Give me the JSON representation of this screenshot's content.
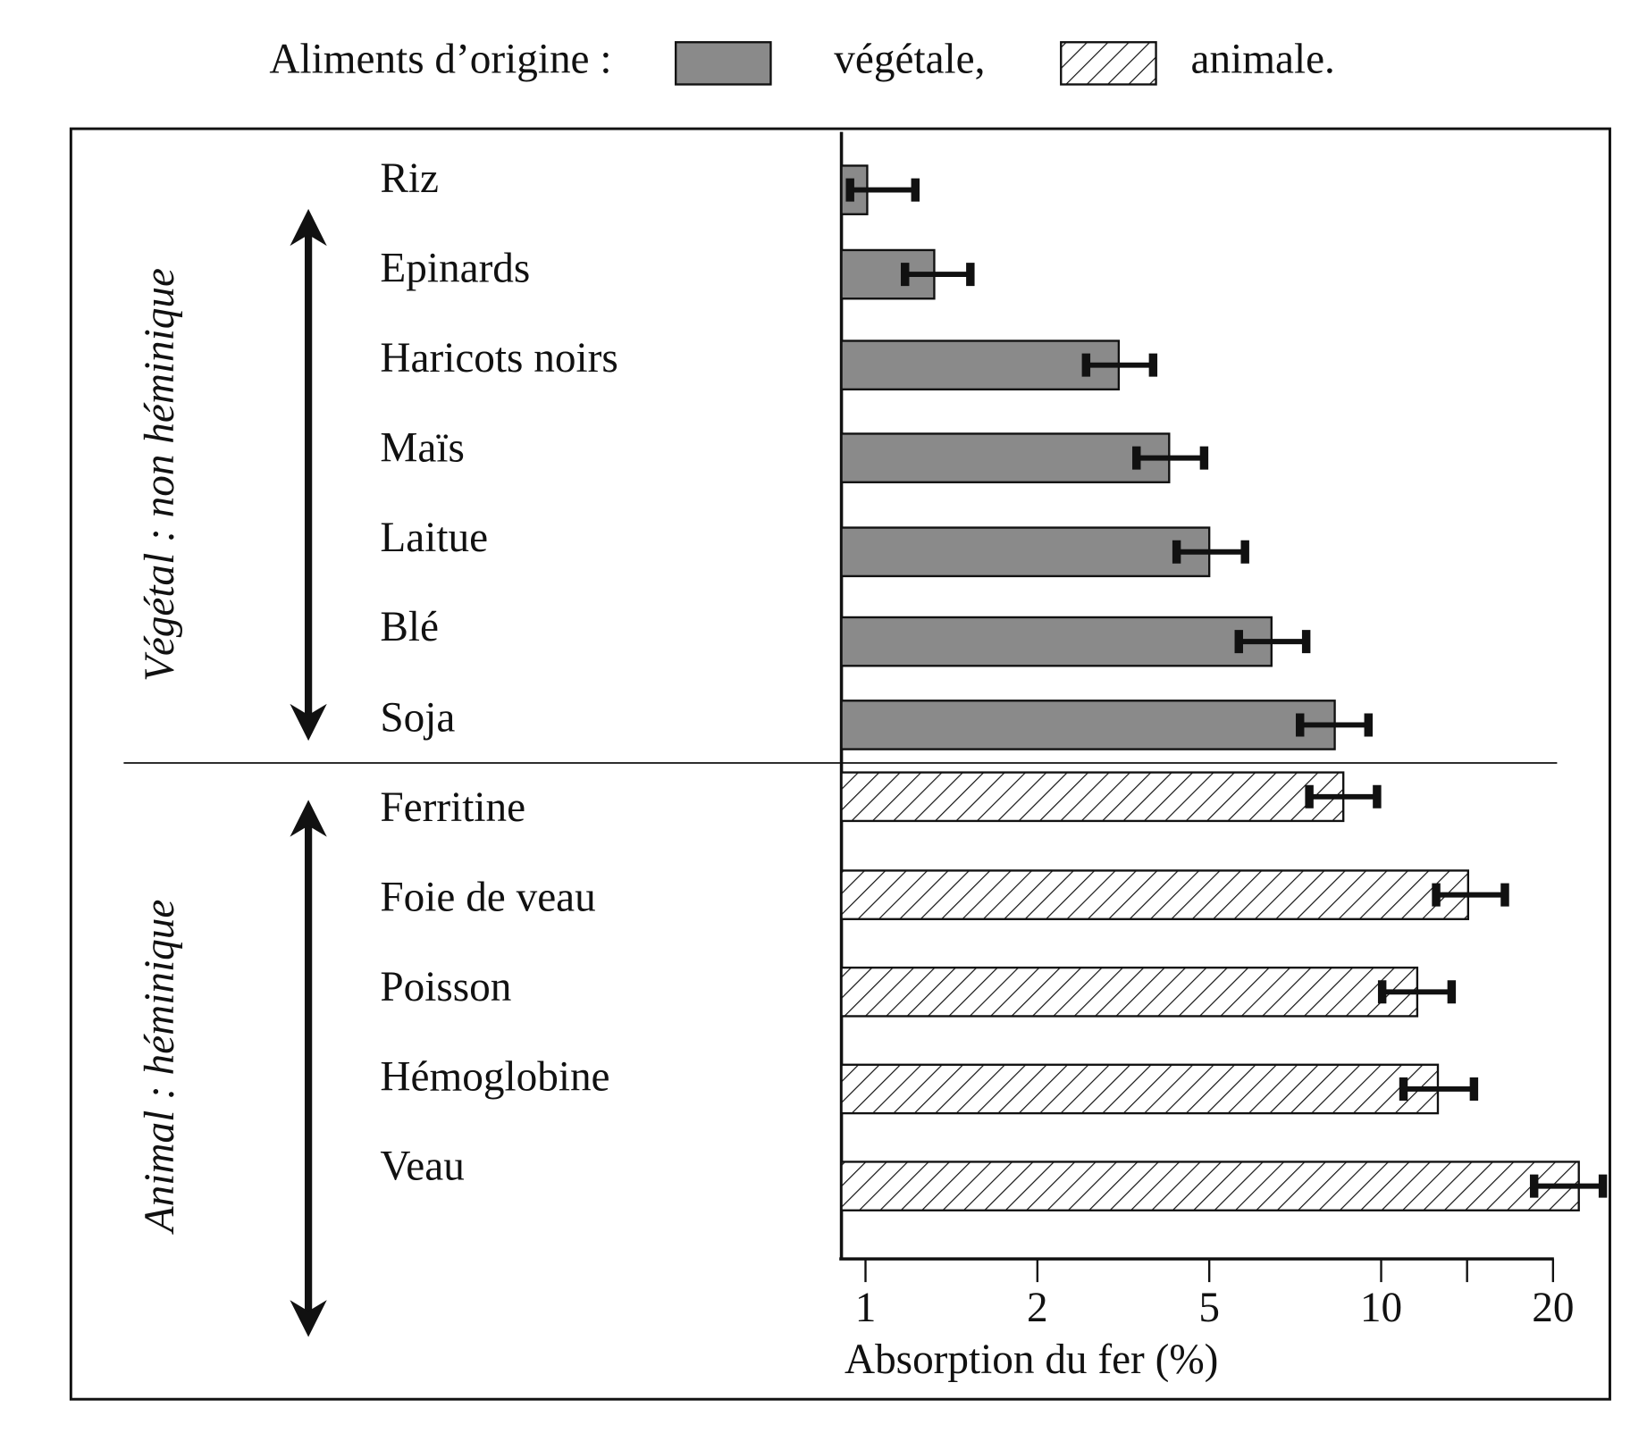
{
  "chart_data": {
    "type": "bar",
    "orientation": "horizontal",
    "legend_title": "Aliments d’origine :",
    "x_label": "Absorption du fer (%)",
    "xlim": [
      0.86,
      23
    ],
    "xticks": [
      1,
      2,
      5,
      10,
      20
    ],
    "xminor_ticks": [
      15
    ],
    "series": [
      {
        "name": "végétale,",
        "color": "#8a8a8a",
        "hatch": false,
        "group_label": "Végétal : non héminique",
        "categories": [
          "Riz",
          "Epinards",
          "Haricots noirs",
          "Maïs",
          "Laitue",
          "Blé",
          "Soja"
        ],
        "values": [
          1.01,
          1.4,
          3.42,
          4.3,
          5.0,
          6.81,
          8.65
        ],
        "err_low": [
          0.91,
          1.23,
          2.85,
          3.73,
          4.43,
          5.86,
          7.64
        ],
        "err_high": [
          1.29,
          1.61,
          4.02,
          4.91,
          6.04,
          7.82,
          9.63
        ]
      },
      {
        "name": "animale.",
        "color": "#ffffff",
        "hatch": true,
        "group_label": "Animal : héminique",
        "categories": [
          "Ferritine",
          "Foie de veau",
          "Poisson",
          "Hémoglobine",
          "Veau"
        ],
        "values": [
          8.9,
          15.06,
          12.1,
          13.3,
          21.5
        ],
        "err_low": [
          7.91,
          13.2,
          10.06,
          11.3,
          18.9
        ],
        "err_high": [
          9.88,
          17.2,
          14.1,
          15.4,
          22.9
        ]
      }
    ]
  }
}
